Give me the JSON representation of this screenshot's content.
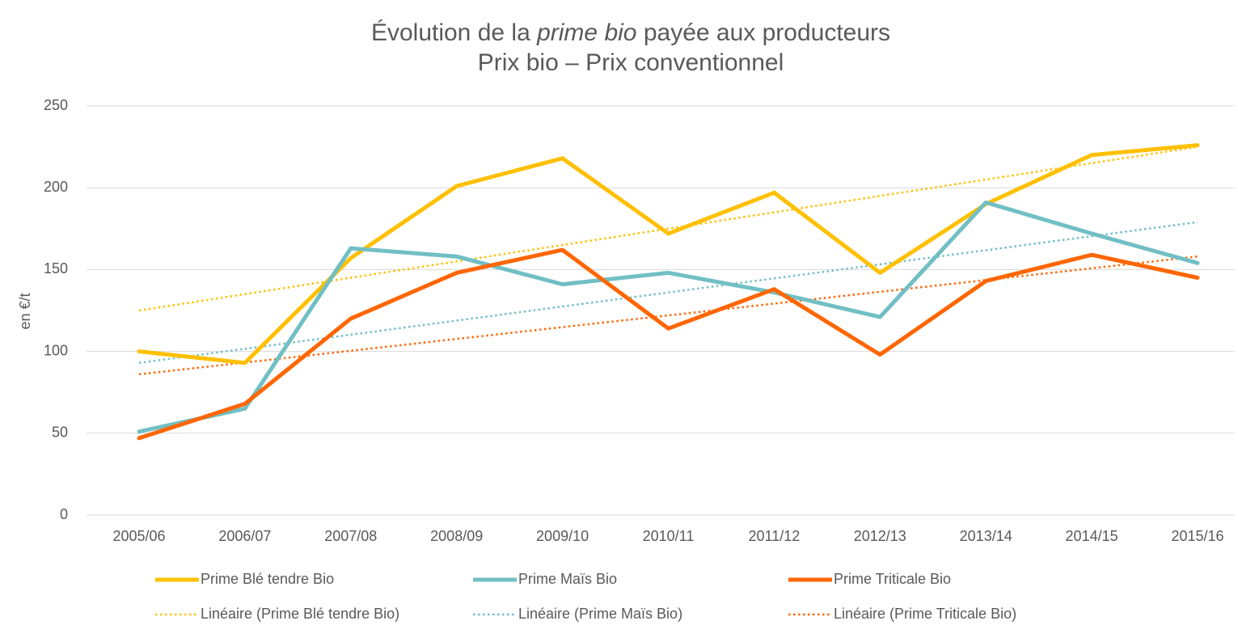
{
  "chart_data": {
    "type": "line",
    "title": [
      "Évolution de la ",
      "prime bio",
      " payée aux producteurs"
    ],
    "subtitle": "Prix bio – Prix conventionnel",
    "y_label": "en €/t",
    "categories": [
      "2005/06",
      "2006/07",
      "2007/08",
      "2008/09",
      "2009/10",
      "2010/11",
      "2011/12",
      "2012/13",
      "2013/14",
      "2014/15",
      "2015/16"
    ],
    "series": [
      {
        "name": "Prime Blé tendre Bio",
        "color": "#ffc000",
        "dotted": false,
        "values": [
          100,
          93,
          157,
          201,
          218,
          172,
          197,
          148,
          190,
          220,
          226
        ]
      },
      {
        "name": "Prime Maïs Bio",
        "color": "#71bfc4",
        "dotted": false,
        "values": [
          51,
          65,
          163,
          158,
          141,
          148,
          136,
          121,
          191,
          172,
          154
        ]
      },
      {
        "name": "Prime Triticale Bio",
        "color": "#ff6600",
        "dotted": false,
        "values": [
          47,
          68,
          120,
          148,
          162,
          114,
          138,
          98,
          143,
          159,
          145
        ]
      },
      {
        "name": "Linéaire (Prime Blé tendre Bio)",
        "color": "#ffc000",
        "dotted": true,
        "values": [
          125,
          135,
          145,
          155,
          165,
          175,
          185,
          195,
          205,
          215,
          225
        ]
      },
      {
        "name": "Linéaire (Prime Maïs Bio)",
        "color": "#71bfc4",
        "dotted": true,
        "values": [
          93,
          101.6,
          110.2,
          118.8,
          127.4,
          136,
          144.6,
          153.2,
          161.8,
          170.4,
          179
        ]
      },
      {
        "name": "Linéaire (Prime Triticale Bio)",
        "color": "#ff6600",
        "dotted": true,
        "values": [
          86,
          93.2,
          100.4,
          107.6,
          114.8,
          122,
          129.2,
          136.4,
          143.6,
          150.8,
          158
        ]
      }
    ],
    "ylim": [
      0,
      250
    ],
    "yticks": [
      0,
      50,
      100,
      150,
      200,
      250
    ],
    "grid": true
  }
}
